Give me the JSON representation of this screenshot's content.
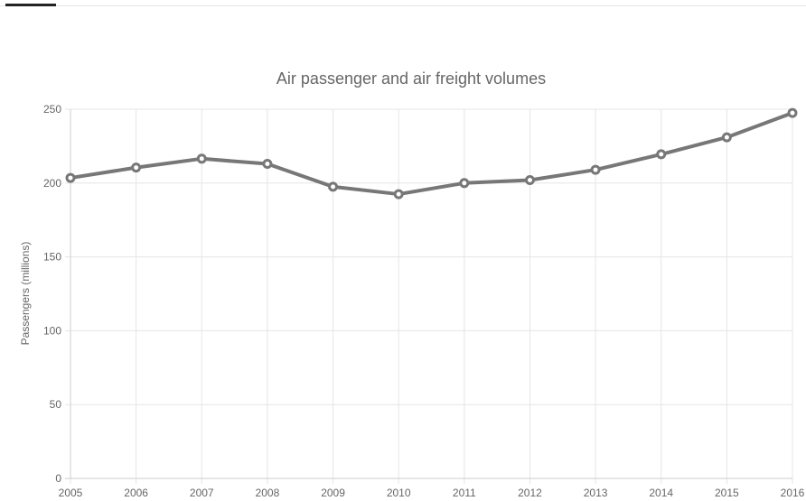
{
  "colors": {
    "series": "#777777",
    "grid": "#e5e5e5",
    "axis": "#cccccc",
    "text": "#666666"
  },
  "chart_data": {
    "type": "line",
    "title": "Air passenger and air freight volumes",
    "xlabel": "",
    "ylabel": "Passengers (millions)",
    "x": [
      "2005",
      "2006",
      "2007",
      "2008",
      "2009",
      "2010",
      "2011",
      "2012",
      "2013",
      "2014",
      "2015",
      "2016"
    ],
    "series": [
      {
        "values": [
          203.5,
          210.5,
          216.5,
          213,
          197.5,
          192.5,
          200,
          202,
          209,
          219.5,
          231,
          247.5
        ]
      }
    ],
    "ylim": [
      0,
      250
    ],
    "yticks": [
      "0",
      "50",
      "100",
      "150",
      "200",
      "250"
    ],
    "grid": true,
    "legend": "none"
  }
}
